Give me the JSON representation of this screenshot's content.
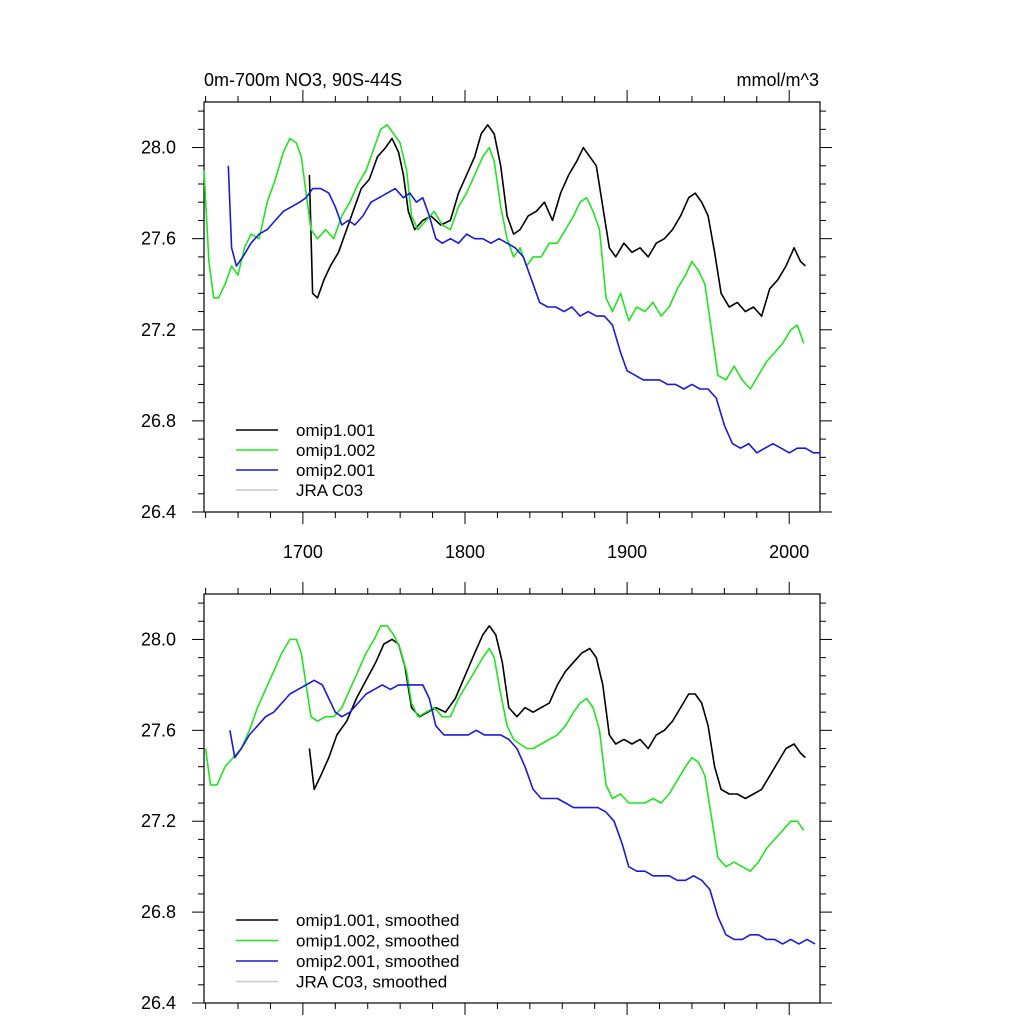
{
  "chart_data": [
    {
      "type": "line",
      "title": "0m-700m NO3, 90S-44S",
      "units": "mmol/m^3",
      "xlabel": "",
      "ylabel": "",
      "xlim": [
        1639,
        2019
      ],
      "ylim": [
        26.4,
        28.2
      ],
      "x_ticks": [
        1700,
        1800,
        1900,
        2000
      ],
      "x_tick_labels": [
        "1700",
        "1800",
        "1900",
        "2000"
      ],
      "y_ticks": [
        26.4,
        26.8,
        27.2,
        27.6,
        28.0
      ],
      "y_tick_labels": [
        "26.4",
        "26.8",
        "27.2",
        "27.6",
        "28.0"
      ],
      "legend_position": "bottom-left",
      "series": [
        {
          "name": "omip1.001",
          "color": "#000000",
          "x": [
            1704,
            1706,
            1709,
            1713,
            1717,
            1722,
            1726,
            1731,
            1736,
            1741,
            1746,
            1751,
            1755,
            1759,
            1762,
            1765,
            1769,
            1774,
            1779,
            1785,
            1791,
            1796,
            1801,
            1806,
            1810,
            1814,
            1818,
            1822,
            1826,
            1830,
            1834,
            1839,
            1844,
            1849,
            1854,
            1859,
            1864,
            1869,
            1873,
            1877,
            1881,
            1885,
            1889,
            1893,
            1898,
            1903,
            1908,
            1913,
            1918,
            1923,
            1928,
            1933,
            1938,
            1942,
            1946,
            1950,
            1954,
            1958,
            1963,
            1968,
            1973,
            1978,
            1983,
            1988,
            1993,
            1998,
            2003,
            2007,
            2010
          ],
          "y": [
            27.88,
            27.36,
            27.34,
            27.42,
            27.48,
            27.54,
            27.62,
            27.72,
            27.82,
            27.86,
            27.96,
            28.0,
            28.04,
            27.98,
            27.88,
            27.72,
            27.64,
            27.68,
            27.7,
            27.66,
            27.68,
            27.8,
            27.88,
            27.96,
            28.06,
            28.1,
            28.06,
            27.92,
            27.7,
            27.62,
            27.64,
            27.7,
            27.72,
            27.76,
            27.68,
            27.8,
            27.88,
            27.94,
            28.0,
            27.96,
            27.92,
            27.74,
            27.56,
            27.52,
            27.58,
            27.54,
            27.56,
            27.52,
            27.58,
            27.6,
            27.64,
            27.7,
            27.78,
            27.8,
            27.76,
            27.7,
            27.54,
            27.36,
            27.3,
            27.32,
            27.28,
            27.3,
            27.26,
            27.38,
            27.42,
            27.48,
            27.56,
            27.5,
            27.48
          ]
        },
        {
          "name": "omip1.002",
          "color": "#22e322",
          "x": [
            1639,
            1642,
            1645,
            1648,
            1652,
            1656,
            1660,
            1664,
            1668,
            1673,
            1678,
            1683,
            1688,
            1692,
            1696,
            1699,
            1702,
            1705,
            1709,
            1714,
            1719,
            1724,
            1729,
            1734,
            1739,
            1744,
            1748,
            1752,
            1756,
            1760,
            1764,
            1767,
            1771,
            1776,
            1781,
            1786,
            1791,
            1796,
            1801,
            1806,
            1811,
            1815,
            1818,
            1822,
            1826,
            1830,
            1834,
            1838,
            1842,
            1847,
            1852,
            1857,
            1862,
            1867,
            1871,
            1875,
            1879,
            1883,
            1887,
            1891,
            1896,
            1901,
            1906,
            1911,
            1916,
            1921,
            1926,
            1931,
            1936,
            1940,
            1944,
            1948,
            1952,
            1956,
            1961,
            1966,
            1971,
            1976,
            1981,
            1986,
            1991,
            1996,
            2001,
            2005,
            2009
          ],
          "y": [
            27.9,
            27.5,
            27.34,
            27.34,
            27.4,
            27.48,
            27.44,
            27.56,
            27.62,
            27.6,
            27.76,
            27.86,
            27.98,
            28.04,
            28.02,
            27.96,
            27.8,
            27.64,
            27.6,
            27.64,
            27.6,
            27.7,
            27.76,
            27.84,
            27.9,
            28.0,
            28.08,
            28.1,
            28.06,
            28.02,
            27.9,
            27.7,
            27.64,
            27.68,
            27.72,
            27.66,
            27.64,
            27.74,
            27.8,
            27.88,
            27.96,
            28.0,
            27.94,
            27.74,
            27.6,
            27.52,
            27.56,
            27.48,
            27.52,
            27.52,
            27.58,
            27.58,
            27.64,
            27.7,
            27.76,
            27.78,
            27.72,
            27.64,
            27.34,
            27.28,
            27.36,
            27.24,
            27.3,
            27.28,
            27.32,
            27.26,
            27.3,
            27.38,
            27.44,
            27.5,
            27.46,
            27.4,
            27.2,
            27.0,
            26.98,
            27.04,
            26.98,
            26.94,
            27.0,
            27.06,
            27.1,
            27.14,
            27.2,
            27.22,
            27.14
          ]
        },
        {
          "name": "omip2.001",
          "color": "#1a1ad9",
          "x": [
            1654,
            1656,
            1659,
            1663,
            1668,
            1673,
            1678,
            1683,
            1688,
            1693,
            1698,
            1702,
            1706,
            1711,
            1716,
            1720,
            1724,
            1728,
            1732,
            1737,
            1742,
            1747,
            1752,
            1757,
            1762,
            1766,
            1770,
            1774,
            1778,
            1782,
            1786,
            1791,
            1796,
            1801,
            1806,
            1811,
            1816,
            1821,
            1826,
            1831,
            1836,
            1841,
            1846,
            1851,
            1856,
            1861,
            1866,
            1871,
            1876,
            1881,
            1886,
            1891,
            1896,
            1900,
            1905,
            1910,
            1915,
            1920,
            1925,
            1930,
            1935,
            1940,
            1945,
            1950,
            1955,
            1960,
            1965,
            1970,
            1975,
            1980,
            1985,
            1990,
            1995,
            2000,
            2005,
            2010,
            2015,
            2019
          ],
          "y": [
            27.92,
            27.56,
            27.48,
            27.52,
            27.58,
            27.62,
            27.64,
            27.68,
            27.72,
            27.74,
            27.76,
            27.78,
            27.82,
            27.82,
            27.8,
            27.74,
            27.66,
            27.68,
            27.66,
            27.7,
            27.76,
            27.78,
            27.8,
            27.82,
            27.78,
            27.8,
            27.76,
            27.78,
            27.7,
            27.6,
            27.58,
            27.6,
            27.58,
            27.62,
            27.6,
            27.6,
            27.58,
            27.6,
            27.58,
            27.56,
            27.52,
            27.42,
            27.32,
            27.3,
            27.3,
            27.28,
            27.3,
            27.26,
            27.28,
            27.26,
            27.26,
            27.22,
            27.1,
            27.02,
            27.0,
            26.98,
            26.98,
            26.98,
            26.96,
            26.96,
            26.94,
            26.96,
            26.94,
            26.94,
            26.9,
            26.78,
            26.7,
            26.68,
            26.7,
            26.66,
            26.68,
            26.7,
            26.68,
            26.66,
            26.68,
            26.68,
            26.66,
            26.66
          ]
        },
        {
          "name": "JRA C03",
          "color": "#c8c8c8",
          "x": [],
          "y": []
        }
      ]
    },
    {
      "type": "line",
      "title": "",
      "xlabel": "",
      "ylabel": "",
      "xlim": [
        1639,
        2019
      ],
      "ylim": [
        26.4,
        28.2
      ],
      "x_ticks": [
        1700,
        1800,
        1900,
        2000
      ],
      "x_tick_labels": [],
      "y_ticks": [
        26.4,
        26.8,
        27.2,
        27.6,
        28.0
      ],
      "y_tick_labels": [
        "26.4",
        "26.8",
        "27.2",
        "27.6",
        "28.0"
      ],
      "legend_position": "bottom-left",
      "series": [
        {
          "name": "omip1.001, smoothed",
          "color": "#000000",
          "x": [
            1704,
            1707,
            1711,
            1716,
            1721,
            1727,
            1733,
            1739,
            1745,
            1750,
            1755,
            1759,
            1763,
            1767,
            1772,
            1777,
            1782,
            1788,
            1794,
            1800,
            1806,
            1811,
            1815,
            1819,
            1823,
            1827,
            1832,
            1837,
            1842,
            1847,
            1852,
            1857,
            1862,
            1867,
            1872,
            1877,
            1881,
            1885,
            1889,
            1893,
            1898,
            1903,
            1908,
            1913,
            1918,
            1923,
            1928,
            1933,
            1938,
            1942,
            1946,
            1950,
            1954,
            1958,
            1963,
            1968,
            1973,
            1978,
            1983,
            1988,
            1993,
            1998,
            2003,
            2007,
            2010
          ],
          "y": [
            27.52,
            27.34,
            27.4,
            27.48,
            27.58,
            27.64,
            27.74,
            27.82,
            27.9,
            27.98,
            28.0,
            27.98,
            27.88,
            27.7,
            27.66,
            27.68,
            27.7,
            27.68,
            27.74,
            27.84,
            27.94,
            28.02,
            28.06,
            28.02,
            27.9,
            27.7,
            27.66,
            27.7,
            27.68,
            27.7,
            27.72,
            27.8,
            27.86,
            27.9,
            27.94,
            27.96,
            27.92,
            27.8,
            27.58,
            27.54,
            27.56,
            27.54,
            27.56,
            27.52,
            27.58,
            27.6,
            27.64,
            27.7,
            27.76,
            27.76,
            27.72,
            27.62,
            27.44,
            27.34,
            27.32,
            27.32,
            27.3,
            27.32,
            27.34,
            27.4,
            27.46,
            27.52,
            27.54,
            27.5,
            27.48
          ]
        },
        {
          "name": "omip1.002, smoothed",
          "color": "#22e322",
          "x": [
            1640,
            1643,
            1647,
            1652,
            1657,
            1662,
            1667,
            1672,
            1677,
            1682,
            1687,
            1692,
            1696,
            1699,
            1702,
            1705,
            1709,
            1714,
            1719,
            1724,
            1729,
            1734,
            1739,
            1744,
            1748,
            1752,
            1756,
            1760,
            1764,
            1767,
            1771,
            1776,
            1781,
            1786,
            1791,
            1796,
            1801,
            1806,
            1811,
            1815,
            1818,
            1822,
            1826,
            1830,
            1834,
            1838,
            1842,
            1847,
            1852,
            1857,
            1862,
            1867,
            1871,
            1875,
            1879,
            1883,
            1887,
            1891,
            1896,
            1901,
            1906,
            1911,
            1916,
            1921,
            1926,
            1931,
            1936,
            1940,
            1944,
            1948,
            1952,
            1956,
            1961,
            1966,
            1971,
            1976,
            1981,
            1986,
            1991,
            1996,
            2001,
            2005,
            2009
          ],
          "y": [
            27.52,
            27.36,
            27.36,
            27.44,
            27.48,
            27.52,
            27.6,
            27.7,
            27.78,
            27.86,
            27.94,
            28.0,
            28.0,
            27.94,
            27.8,
            27.66,
            27.64,
            27.66,
            27.66,
            27.7,
            27.78,
            27.86,
            27.94,
            28.0,
            28.06,
            28.06,
            28.02,
            27.96,
            27.86,
            27.72,
            27.66,
            27.68,
            27.7,
            27.66,
            27.66,
            27.74,
            27.8,
            27.86,
            27.92,
            27.96,
            27.92,
            27.76,
            27.62,
            27.56,
            27.54,
            27.52,
            27.52,
            27.54,
            27.56,
            27.58,
            27.62,
            27.68,
            27.72,
            27.74,
            27.7,
            27.6,
            27.36,
            27.3,
            27.32,
            27.28,
            27.28,
            27.28,
            27.3,
            27.28,
            27.32,
            27.38,
            27.44,
            27.48,
            27.46,
            27.4,
            27.22,
            27.04,
            27.0,
            27.02,
            27.0,
            26.98,
            27.02,
            27.08,
            27.12,
            27.16,
            27.2,
            27.2,
            27.16
          ]
        },
        {
          "name": "omip2.001, smoothed",
          "color": "#1a1ad9",
          "x": [
            1655,
            1658,
            1662,
            1667,
            1672,
            1677,
            1682,
            1687,
            1692,
            1697,
            1702,
            1707,
            1712,
            1716,
            1720,
            1724,
            1729,
            1734,
            1739,
            1744,
            1749,
            1754,
            1759,
            1764,
            1769,
            1774,
            1778,
            1782,
            1787,
            1792,
            1797,
            1802,
            1807,
            1812,
            1817,
            1822,
            1827,
            1832,
            1837,
            1842,
            1847,
            1852,
            1857,
            1862,
            1867,
            1872,
            1877,
            1882,
            1887,
            1892,
            1897,
            1901,
            1906,
            1911,
            1916,
            1921,
            1926,
            1931,
            1936,
            1941,
            1946,
            1951,
            1956,
            1961,
            1966,
            1971,
            1976,
            1981,
            1986,
            1991,
            1996,
            2001,
            2006,
            2011,
            2016
          ],
          "y": [
            27.6,
            27.48,
            27.52,
            27.58,
            27.62,
            27.66,
            27.68,
            27.72,
            27.76,
            27.78,
            27.8,
            27.82,
            27.8,
            27.74,
            27.68,
            27.66,
            27.68,
            27.72,
            27.76,
            27.78,
            27.8,
            27.78,
            27.8,
            27.8,
            27.8,
            27.8,
            27.74,
            27.62,
            27.58,
            27.58,
            27.58,
            27.58,
            27.6,
            27.58,
            27.58,
            27.58,
            27.56,
            27.52,
            27.44,
            27.34,
            27.3,
            27.3,
            27.3,
            27.28,
            27.26,
            27.26,
            27.26,
            27.26,
            27.24,
            27.2,
            27.1,
            27.0,
            26.98,
            26.98,
            26.96,
            26.96,
            26.96,
            26.94,
            26.94,
            26.96,
            26.94,
            26.9,
            26.78,
            26.7,
            26.68,
            26.68,
            26.7,
            26.7,
            26.68,
            26.68,
            26.66,
            26.68,
            26.66,
            26.68,
            26.66
          ]
        },
        {
          "name": "JRA C03, smoothed",
          "color": "#c8c8c8",
          "x": [],
          "y": []
        }
      ]
    }
  ]
}
